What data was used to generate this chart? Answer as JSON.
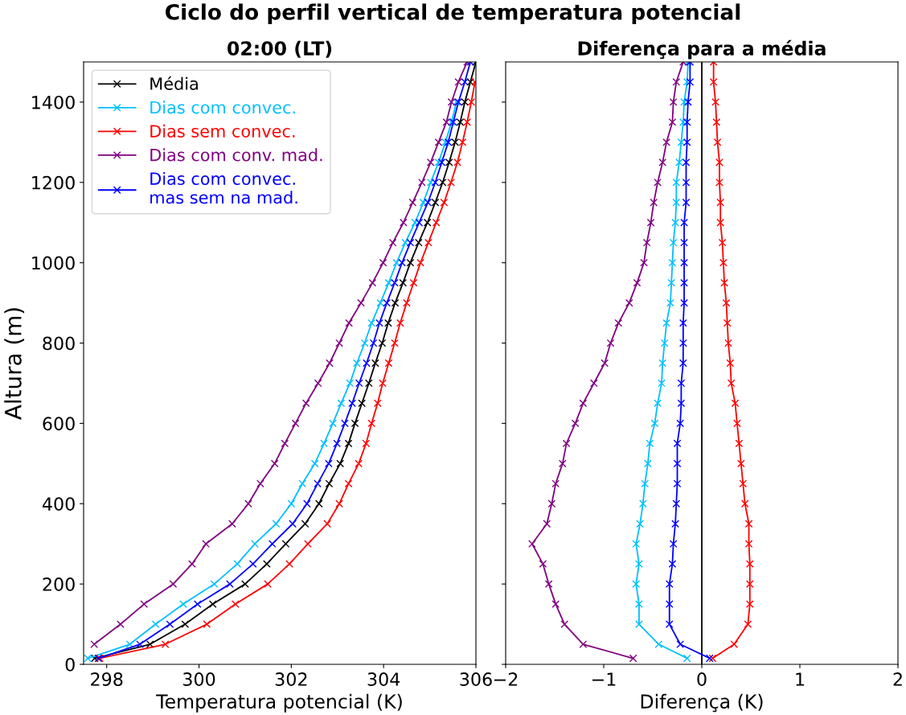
{
  "chart_data": [
    {
      "type": "line",
      "title": "Ciclo do perfil vertical de temperatura potencial",
      "subtitle": "02:00 (LT)",
      "xlabel": "Temperatura potencial (K)",
      "ylabel": "Altura (m)",
      "xlim": [
        297.5,
        306
      ],
      "xticks": [
        298,
        300,
        302,
        304,
        306
      ],
      "ylim": [
        0,
        1500
      ],
      "yticks": [
        0,
        200,
        400,
        600,
        800,
        1000,
        1200,
        1400
      ],
      "grid": false,
      "legend": "top left",
      "marker": "cross",
      "line_style": "solid",
      "series": [
        {
          "name": "Média",
          "color": "#000000",
          "x": [
            297.74,
            298.94,
            299.7,
            300.3,
            301.0,
            301.47,
            301.88,
            302.3,
            302.6,
            302.82,
            303.06,
            303.24,
            303.38,
            303.53,
            303.68,
            303.82,
            303.97,
            304.1,
            304.25,
            304.42,
            304.58,
            304.76,
            304.95,
            305.12,
            305.28,
            305.42,
            305.55,
            305.66,
            305.76,
            305.88,
            306.0
          ],
          "values": [
            15,
            50,
            100,
            150,
            200,
            250,
            300,
            350,
            400,
            450,
            500,
            550,
            600,
            650,
            700,
            750,
            800,
            850,
            900,
            950,
            1000,
            1050,
            1100,
            1150,
            1200,
            1250,
            1300,
            1350,
            1400,
            1450,
            1500
          ]
        },
        {
          "name": "Dias com convec.",
          "color": "#00bfff",
          "x": [
            297.59,
            298.5,
            299.06,
            299.66,
            300.33,
            300.83,
            301.21,
            301.67,
            302.0,
            302.24,
            302.51,
            302.71,
            302.9,
            303.08,
            303.27,
            303.42,
            303.59,
            303.74,
            303.93,
            304.11,
            304.28,
            304.47,
            304.68,
            304.86,
            305.02,
            305.19,
            305.34,
            305.47,
            305.58,
            null,
            null
          ],
          "values": [
            15,
            50,
            100,
            150,
            200,
            250,
            300,
            350,
            400,
            450,
            500,
            550,
            600,
            650,
            700,
            750,
            800,
            850,
            900,
            950,
            1000,
            1050,
            1100,
            1150,
            1200,
            1250,
            1300,
            1350,
            1400,
            null,
            null
          ]
        },
        {
          "name": "Dias sem convec.",
          "color": "#ff0000",
          "x": [
            297.85,
            299.27,
            300.17,
            300.79,
            301.49,
            301.96,
            302.36,
            302.78,
            303.04,
            303.24,
            303.46,
            303.62,
            303.74,
            303.87,
            303.98,
            304.11,
            304.24,
            304.36,
            304.5,
            304.65,
            304.8,
            304.97,
            305.14,
            305.31,
            305.46,
            305.6,
            305.71,
            305.81,
            305.9,
            305.98,
            null
          ],
          "values": [
            15,
            50,
            100,
            150,
            200,
            250,
            300,
            350,
            400,
            450,
            500,
            550,
            600,
            650,
            700,
            750,
            800,
            850,
            900,
            950,
            1000,
            1050,
            1100,
            1150,
            1200,
            1250,
            1300,
            1350,
            1400,
            1450,
            null
          ]
        },
        {
          "name": "Dias com conv. mad.",
          "color": "#800080",
          "x": [
            null,
            297.73,
            298.3,
            298.81,
            299.44,
            299.85,
            300.15,
            300.72,
            301.07,
            301.33,
            301.64,
            301.86,
            302.09,
            302.32,
            302.58,
            302.83,
            303.04,
            303.25,
            303.51,
            303.76,
            303.99,
            304.2,
            304.43,
            304.63,
            304.83,
            305.02,
            305.19,
            305.36,
            305.47,
            305.62,
            305.81
          ],
          "values": [
            null,
            50,
            100,
            150,
            200,
            250,
            300,
            350,
            400,
            450,
            500,
            550,
            600,
            650,
            700,
            750,
            800,
            850,
            900,
            950,
            1000,
            1050,
            1100,
            1150,
            1200,
            1250,
            1300,
            1350,
            1400,
            1450,
            1500
          ]
        },
        {
          "name": "Dias com convec.\nmas sem na mad.",
          "color": "#0000ff",
          "x": [
            297.82,
            298.72,
            299.37,
            299.97,
            300.67,
            301.17,
            301.59,
            302.03,
            302.34,
            302.57,
            302.81,
            302.99,
            303.16,
            303.32,
            303.47,
            303.63,
            303.78,
            303.91,
            304.07,
            304.24,
            304.4,
            304.58,
            304.77,
            304.96,
            305.12,
            305.26,
            305.4,
            305.51,
            305.62,
            305.76,
            305.88
          ],
          "values": [
            15,
            50,
            100,
            150,
            200,
            250,
            300,
            350,
            400,
            450,
            500,
            550,
            600,
            650,
            700,
            750,
            800,
            850,
            900,
            950,
            1000,
            1050,
            1100,
            1150,
            1200,
            1250,
            1300,
            1350,
            1400,
            1450,
            1500
          ]
        }
      ]
    },
    {
      "type": "line",
      "title": "Diferença para a média",
      "xlabel": "Diferença (K)",
      "xlim": [
        -2,
        2
      ],
      "xticks": [
        {
          "value": -2,
          "label": "−2"
        },
        {
          "value": -1,
          "label": "−1"
        },
        0,
        1,
        2
      ],
      "ylim": [
        0,
        1500
      ],
      "yticks": [
        0,
        200,
        400,
        600,
        800,
        1000,
        1200,
        1400
      ],
      "tick_labels": "x",
      "grid": false,
      "marker": "cross",
      "line_style": "solid",
      "ref_lines": [
        {
          "axis": "x",
          "value": 0,
          "color": "#000000"
        }
      ],
      "series": [
        {
          "color": "#00bfff",
          "x": [
            -0.15,
            -0.44,
            -0.64,
            -0.64,
            -0.67,
            -0.64,
            -0.67,
            -0.63,
            -0.6,
            -0.58,
            -0.55,
            -0.53,
            -0.48,
            -0.45,
            -0.41,
            -0.4,
            -0.38,
            -0.36,
            -0.32,
            -0.31,
            -0.3,
            -0.29,
            -0.27,
            -0.26,
            -0.26,
            -0.23,
            -0.21,
            -0.19,
            -0.18,
            -0.15,
            -0.14
          ],
          "values": [
            15,
            50,
            100,
            150,
            200,
            250,
            300,
            350,
            400,
            450,
            500,
            550,
            600,
            650,
            700,
            750,
            800,
            850,
            900,
            950,
            1000,
            1050,
            1100,
            1150,
            1200,
            1250,
            1300,
            1350,
            1400,
            1450,
            1500
          ]
        },
        {
          "color": "#ff0000",
          "x": [
            0.11,
            0.33,
            0.47,
            0.49,
            0.49,
            0.49,
            0.48,
            0.48,
            0.44,
            0.42,
            0.4,
            0.38,
            0.36,
            0.34,
            0.3,
            0.29,
            0.27,
            0.26,
            0.25,
            0.23,
            0.22,
            0.21,
            0.19,
            0.19,
            0.18,
            0.18,
            0.16,
            0.15,
            0.14,
            0.12,
            0.12
          ],
          "values": [
            15,
            50,
            100,
            150,
            200,
            250,
            300,
            350,
            400,
            450,
            500,
            550,
            600,
            650,
            700,
            750,
            800,
            850,
            900,
            950,
            1000,
            1050,
            1100,
            1150,
            1200,
            1250,
            1300,
            1350,
            1400,
            1450,
            1500
          ]
        },
        {
          "color": "#800080",
          "x": [
            -0.7,
            -1.21,
            -1.4,
            -1.49,
            -1.56,
            -1.62,
            -1.73,
            -1.58,
            -1.53,
            -1.49,
            -1.42,
            -1.38,
            -1.29,
            -1.21,
            -1.1,
            -0.99,
            -0.93,
            -0.85,
            -0.74,
            -0.66,
            -0.59,
            -0.56,
            -0.52,
            -0.49,
            -0.45,
            -0.4,
            -0.36,
            -0.3,
            -0.29,
            -0.26,
            -0.19
          ],
          "values": [
            15,
            50,
            100,
            150,
            200,
            250,
            300,
            350,
            400,
            450,
            500,
            550,
            600,
            650,
            700,
            750,
            800,
            850,
            900,
            950,
            1000,
            1050,
            1100,
            1150,
            1200,
            1250,
            1300,
            1350,
            1400,
            1450,
            1500
          ]
        },
        {
          "color": "#0000ff",
          "x": [
            0.08,
            -0.22,
            -0.33,
            -0.33,
            -0.33,
            -0.3,
            -0.29,
            -0.27,
            -0.26,
            -0.25,
            -0.25,
            -0.25,
            -0.22,
            -0.21,
            -0.21,
            -0.19,
            -0.19,
            -0.19,
            -0.18,
            -0.18,
            -0.18,
            -0.18,
            -0.18,
            -0.16,
            -0.16,
            -0.16,
            -0.15,
            -0.15,
            -0.14,
            -0.12,
            -0.12
          ],
          "values": [
            15,
            50,
            100,
            150,
            200,
            250,
            300,
            350,
            400,
            450,
            500,
            550,
            600,
            650,
            700,
            750,
            800,
            850,
            900,
            950,
            1000,
            1050,
            1100,
            1150,
            1200,
            1250,
            1300,
            1350,
            1400,
            1450,
            1500
          ]
        }
      ]
    }
  ]
}
